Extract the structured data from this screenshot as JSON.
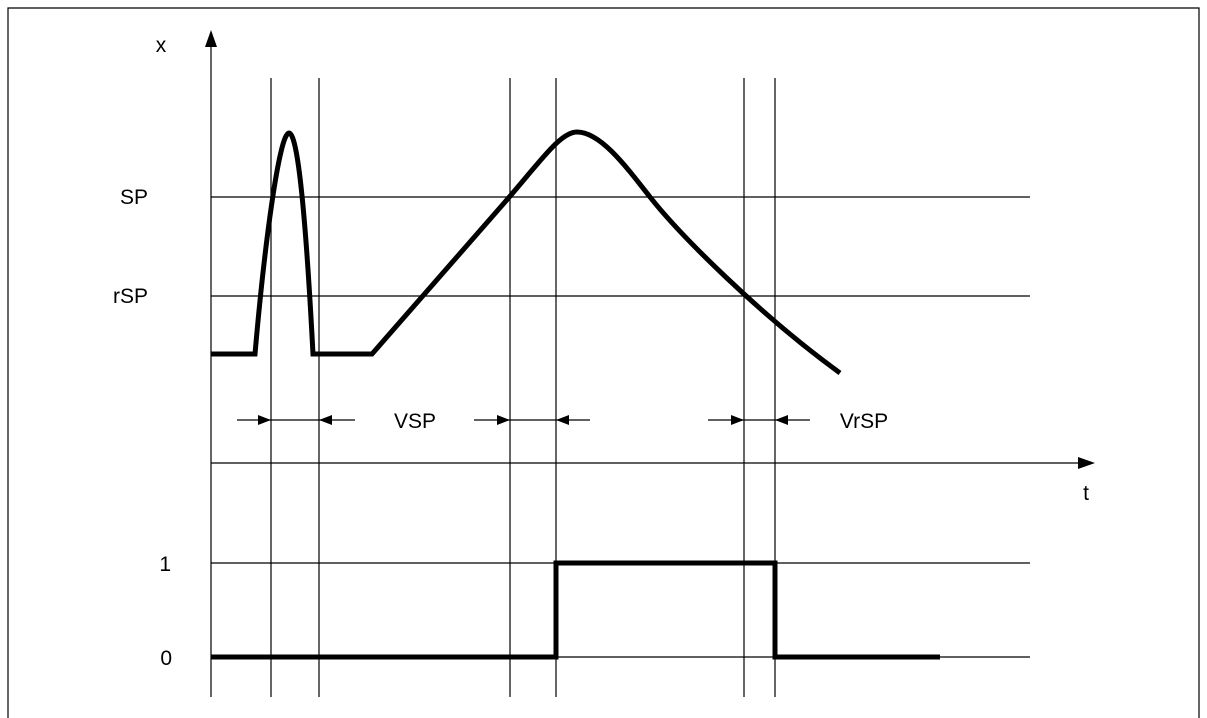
{
  "input_plot": {
    "y_axis_label": "x",
    "time_axis_label": "t",
    "thresholds": {
      "switch_point": "SP",
      "reset_switch_point": "rSP"
    },
    "delays": {
      "switch_delay": "VSP",
      "reset_delay": "VrSP"
    }
  },
  "output_plot": {
    "levels": {
      "high": "1",
      "low": "0"
    }
  },
  "colors": {
    "stroke": "#000000",
    "background": "#ffffff"
  }
}
